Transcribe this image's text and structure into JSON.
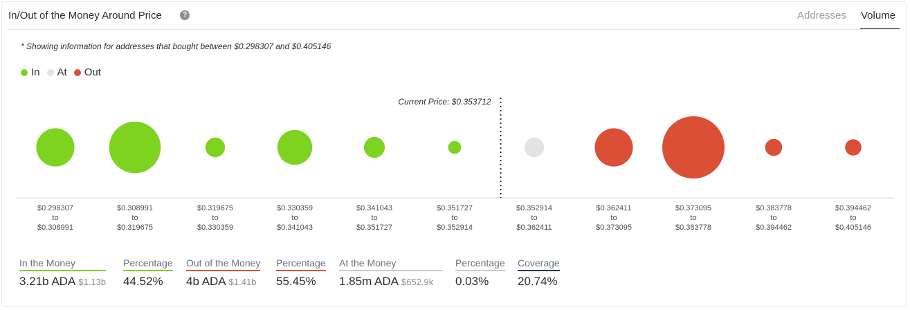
{
  "header": {
    "title": "In/Out of the Money Around Price",
    "help_icon": "question-circle-icon",
    "tabs": [
      {
        "label": "Addresses",
        "active": false
      },
      {
        "label": "Volume",
        "active": true
      }
    ]
  },
  "note": "* Showing information for addresses that bought between $0.298307 and $0.405146",
  "legend": [
    {
      "label": "In",
      "color": "#7ed321"
    },
    {
      "label": "At",
      "color": "#e3e3e3"
    },
    {
      "label": "Out",
      "color": "#db4f37"
    }
  ],
  "chart_data": {
    "type": "bubble",
    "title": "In/Out of the Money Around Price",
    "current_price_label": "Current Price: $0.353712",
    "current_price_position": "between bucket 6 and bucket 7",
    "colors": {
      "in": "#7ed321",
      "at": "#e3e3e3",
      "out": "#db4f37"
    },
    "buckets": [
      {
        "from": "$0.298307",
        "to_word": "to",
        "to": "$0.308991",
        "status": "in",
        "size": 3.0
      },
      {
        "from": "$0.308991",
        "to_word": "to",
        "to": "$0.319675",
        "status": "in",
        "size": 5.5
      },
      {
        "from": "$0.319675",
        "to_word": "to",
        "to": "$0.330359",
        "status": "in",
        "size": 0.8
      },
      {
        "from": "$0.330359",
        "to_word": "to",
        "to": "$0.341043",
        "status": "in",
        "size": 2.5
      },
      {
        "from": "$0.341043",
        "to_word": "to",
        "to": "$0.351727",
        "status": "in",
        "size": 0.9
      },
      {
        "from": "$0.351727",
        "to_word": "to",
        "to": "$0.352914",
        "status": "in",
        "size": 0.35
      },
      {
        "from": "$0.352914",
        "to_word": "to",
        "to": "$0.362411",
        "status": "at",
        "size": 0.8
      },
      {
        "from": "$0.362411",
        "to_word": "to",
        "to": "$0.373095",
        "status": "out",
        "size": 3.0
      },
      {
        "from": "$0.373095",
        "to_word": "to",
        "to": "$0.383778",
        "status": "out",
        "size": 8.0
      },
      {
        "from": "$0.383778",
        "to_word": "to",
        "to": "$0.394462",
        "status": "out",
        "size": 0.6
      },
      {
        "from": "$0.394462",
        "to_word": "to",
        "to": "$0.405146",
        "status": "out",
        "size": 0.55
      }
    ]
  },
  "stats": [
    {
      "label": "In the Money",
      "value": "3.21b ADA",
      "sub": "$1.13b",
      "color": "#7ed321"
    },
    {
      "label": "Percentage",
      "value": "44.52%",
      "sub": "",
      "color": "#7ed321"
    },
    {
      "label": "Out of the Money",
      "value": "4b ADA",
      "sub": "$1.41b",
      "color": "#db4f37"
    },
    {
      "label": "Percentage",
      "value": "55.45%",
      "sub": "",
      "color": "#db4f37"
    },
    {
      "label": "At the Money",
      "value": "1.85m ADA",
      "sub": "$652.9k",
      "color": "#cccccc"
    },
    {
      "label": "Percentage",
      "value": "0.03%",
      "sub": "",
      "color": "#cccccc"
    },
    {
      "label": "Coverage",
      "value": "20.74%",
      "sub": "",
      "color": "#2b3a55"
    }
  ]
}
